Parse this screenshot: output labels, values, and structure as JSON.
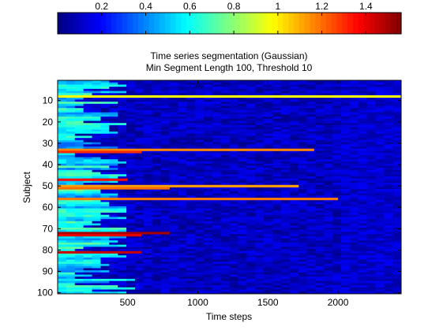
{
  "chart_data": {
    "type": "heatmap",
    "title": "Time series segmentation (Gaussian)",
    "subtitle": "Min Segment Length 100, Threshold 10",
    "xlabel": "Time steps",
    "ylabel": "Subject",
    "xlim": [
      1,
      2450
    ],
    "ylim": [
      1,
      101
    ],
    "y_reversed": true,
    "x_ticks": [
      500,
      1000,
      1500,
      2000
    ],
    "y_ticks": [
      10,
      20,
      30,
      40,
      50,
      60,
      70,
      80,
      90,
      100
    ],
    "colorbar": {
      "colormap": "jet",
      "location": "top",
      "range": [
        0,
        1.56
      ],
      "ticks": [
        0.2,
        0.4,
        0.6,
        0.8,
        1,
        1.2,
        1.4
      ],
      "tick_labels": [
        "0.2",
        "0.4",
        "0.6",
        "0.8",
        "1",
        "1.2",
        "1.4"
      ]
    },
    "rows": 100,
    "cols": 2450,
    "highlight_rows": [
      {
        "subject": 8,
        "x_end": 2450,
        "value": 0.98
      },
      {
        "subject": 33,
        "x_end": 1830,
        "value": 1.16
      },
      {
        "subject": 34,
        "x_end": 600,
        "value": 1.3
      },
      {
        "subject": 47,
        "x_end": 500,
        "value": 1.35
      },
      {
        "subject": 50,
        "x_end": 1720,
        "value": 1.12
      },
      {
        "subject": 51,
        "x_end": 800,
        "value": 1.2
      },
      {
        "subject": 56,
        "x_end": 2000,
        "value": 1.18
      },
      {
        "subject": 72,
        "x_end": 800,
        "value": 1.5
      },
      {
        "subject": 73,
        "x_end": 600,
        "value": 1.4
      },
      {
        "subject": 81,
        "x_end": 600,
        "value": 1.45
      }
    ]
  }
}
